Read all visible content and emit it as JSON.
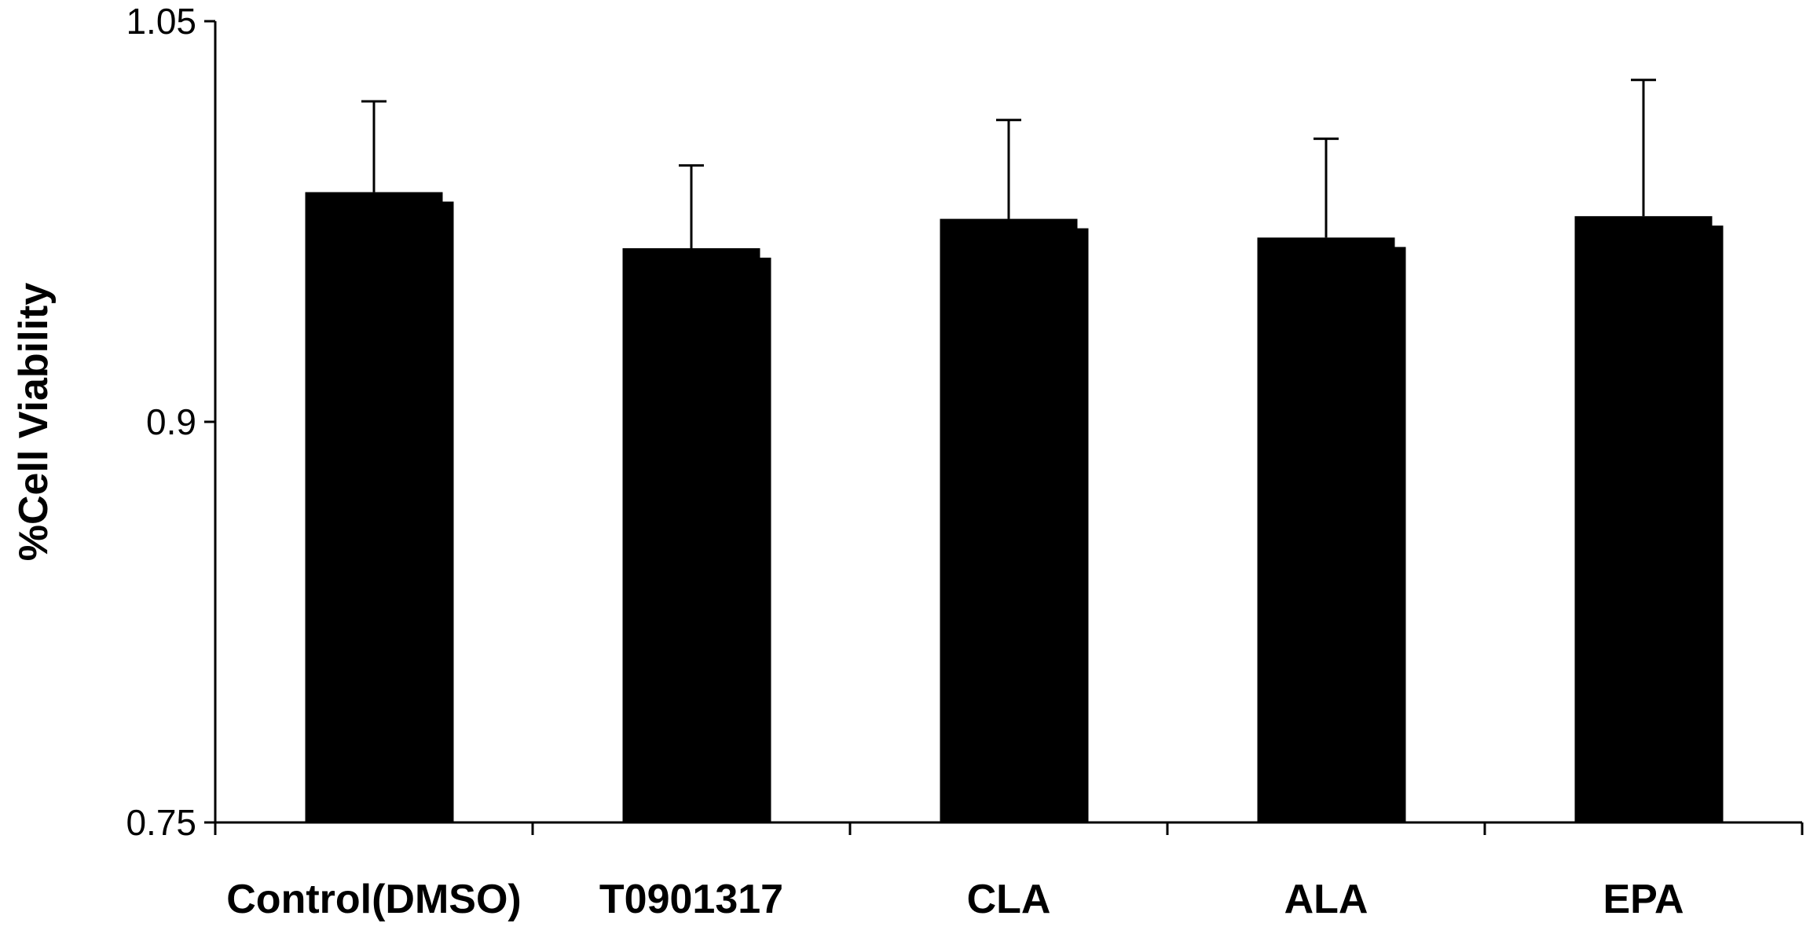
{
  "chart_data": {
    "type": "bar",
    "title": "",
    "xlabel": "",
    "ylabel": "%Cell Viability",
    "categories": [
      "Control(DMSO)",
      "T0901317",
      "CLA",
      "ALA",
      "EPA"
    ],
    "values": [
      0.986,
      0.965,
      0.976,
      0.969,
      0.977
    ],
    "errors": [
      0.034,
      0.031,
      0.037,
      0.037,
      0.051
    ],
    "ylim": [
      0.75,
      1.05
    ],
    "yticks": [
      "0.75",
      "0.9",
      "1.05"
    ],
    "grid": false,
    "legend": "none",
    "bar_color": "#000000"
  }
}
